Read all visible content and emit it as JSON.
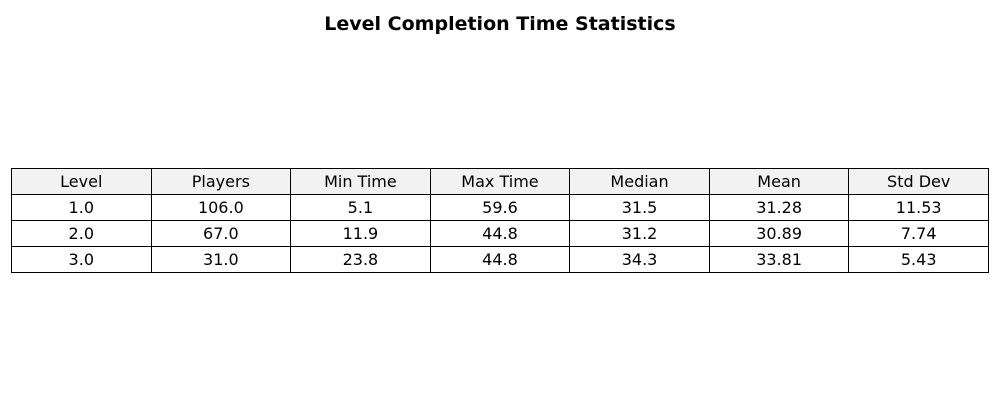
{
  "chart_data": {
    "type": "table",
    "title": "Level Completion Time Statistics",
    "columns": [
      "Level",
      "Players",
      "Min Time",
      "Max Time",
      "Median",
      "Mean",
      "Std Dev"
    ],
    "rows": [
      [
        "1.0",
        "106.0",
        "5.1",
        "59.6",
        "31.5",
        "31.28",
        "11.53"
      ],
      [
        "2.0",
        "67.0",
        "11.9",
        "44.8",
        "31.2",
        "30.89",
        "7.74"
      ],
      [
        "3.0",
        "31.0",
        "23.8",
        "44.8",
        "34.3",
        "33.81",
        "5.43"
      ]
    ],
    "header_color": "#f2f2f2",
    "cell_color": "#ffffff",
    "border_color": "#000000"
  }
}
